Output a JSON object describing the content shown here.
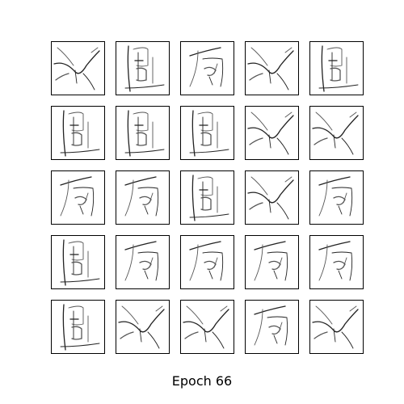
{
  "figure": {
    "caption": "Epoch 66",
    "grid": {
      "rows": 5,
      "cols": 5
    },
    "samples": [
      {
        "glyph": "x"
      },
      {
        "glyph": "tu"
      },
      {
        "glyph": "fang"
      },
      {
        "glyph": "x"
      },
      {
        "glyph": "tu"
      },
      {
        "glyph": "tu"
      },
      {
        "glyph": "tu"
      },
      {
        "glyph": "tu"
      },
      {
        "glyph": "x"
      },
      {
        "glyph": "x"
      },
      {
        "glyph": "fang"
      },
      {
        "glyph": "fang"
      },
      {
        "glyph": "tu"
      },
      {
        "glyph": "x"
      },
      {
        "glyph": "fang"
      },
      {
        "glyph": "tu"
      },
      {
        "glyph": "fang"
      },
      {
        "glyph": "fang"
      },
      {
        "glyph": "fang"
      },
      {
        "glyph": "fang"
      },
      {
        "glyph": "tu"
      },
      {
        "glyph": "x"
      },
      {
        "glyph": "x"
      },
      {
        "glyph": "fang"
      },
      {
        "glyph": "x"
      }
    ]
  }
}
